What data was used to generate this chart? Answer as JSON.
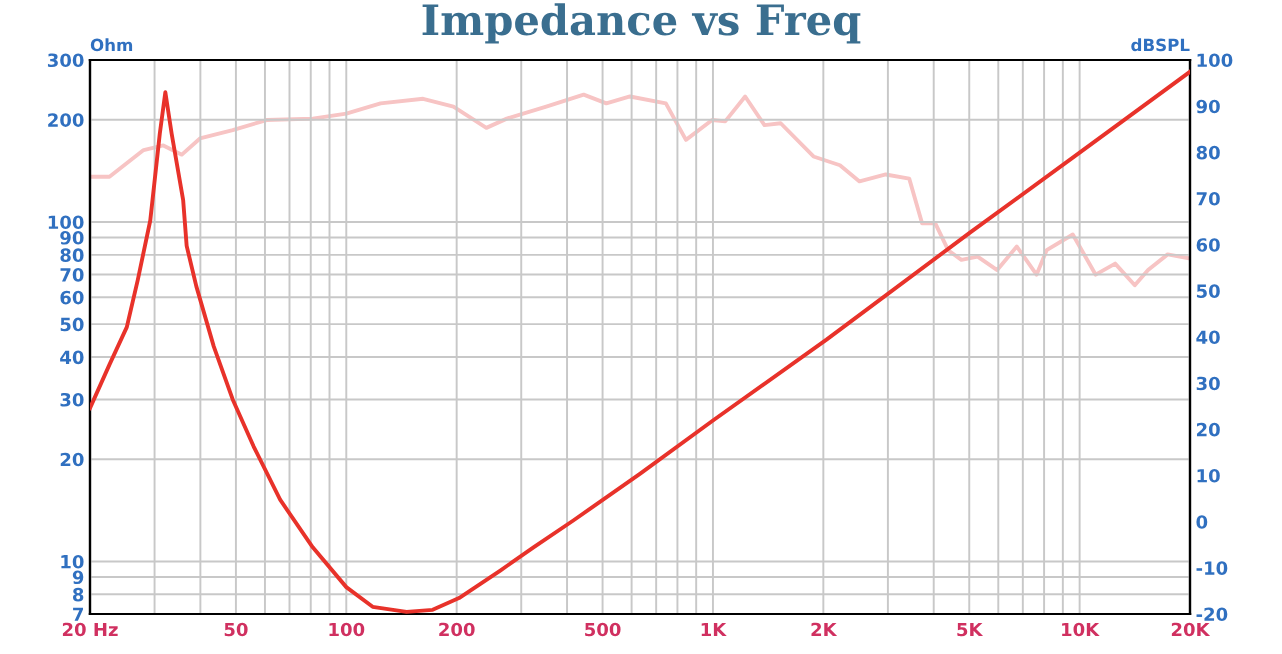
{
  "chart_data": {
    "type": "line",
    "title": "Impedance vs Freq",
    "ylabel": "Ohm",
    "y2label": "dBSPL",
    "log": "xy",
    "grid": true,
    "xlim": [
      20,
      20000
    ],
    "ylim": [
      7,
      300
    ],
    "y2lim": [
      -20,
      100
    ],
    "xticks": [
      {
        "value": 20,
        "label": "20 Hz"
      },
      {
        "value": 30,
        "label": null
      },
      {
        "value": 40,
        "label": null
      },
      50,
      {
        "value": 60,
        "label": null
      },
      {
        "value": 70,
        "label": null
      },
      {
        "value": 80,
        "label": null
      },
      {
        "value": 90,
        "label": null
      },
      100,
      200,
      {
        "value": 300,
        "label": null
      },
      {
        "value": 400,
        "label": null
      },
      500,
      {
        "value": 600,
        "label": null
      },
      {
        "value": 700,
        "label": null
      },
      {
        "value": 800,
        "label": null
      },
      {
        "value": 900,
        "label": null
      },
      {
        "value": 1000,
        "label": "1K"
      },
      {
        "value": 2000,
        "label": "2K"
      },
      {
        "value": 3000,
        "label": null
      },
      {
        "value": 4000,
        "label": null
      },
      {
        "value": 5000,
        "label": "5K"
      },
      {
        "value": 6000,
        "label": null
      },
      {
        "value": 7000,
        "label": null
      },
      {
        "value": 8000,
        "label": null
      },
      {
        "value": 9000,
        "label": null
      },
      {
        "value": 10000,
        "label": "10K"
      },
      {
        "value": 20000,
        "label": "20K"
      }
    ],
    "yticks": [
      7,
      8,
      9,
      10,
      20,
      30,
      40,
      50,
      60,
      70,
      80,
      90,
      100,
      200,
      300
    ],
    "y2ticks": [
      -20,
      -10,
      0,
      10,
      20,
      30,
      40,
      50,
      60,
      70,
      80,
      90,
      100
    ],
    "series": [
      {
        "color": "#f7c4c4",
        "axis": "y2",
        "x": [
          20,
          22.6,
          28,
          31.7,
          35.6,
          39.9,
          49,
          60.6,
          81,
          100,
          124,
          162,
          196,
          241,
          274,
          351,
          444,
          512,
          594,
          744,
          844,
          995,
          1080,
          1224,
          1382,
          1530,
          1880,
          2220,
          2510,
          2960,
          3430,
          3720,
          4040,
          4380,
          4760,
          5270,
          5960,
          6740,
          7630,
          8130,
          9580,
          11060,
          12500,
          14140,
          15370,
          17380,
          20000
        ],
        "values": [
          74.7,
          74.7,
          80.5,
          81.5,
          79.5,
          83,
          84.8,
          87,
          87.3,
          88.4,
          90.6,
          91.6,
          89.9,
          85.3,
          87.3,
          89.9,
          92.5,
          90.6,
          92.1,
          90.6,
          82.7,
          87,
          86.7,
          92.1,
          85.9,
          86.3,
          79.1,
          77.2,
          73.7,
          75.2,
          74.3,
          64.6,
          64.6,
          58.8,
          56.7,
          57.4,
          54.5,
          59.6,
          53.5,
          58.8,
          62.2,
          53.5,
          55.9,
          51.2,
          54.5,
          57.9,
          57
        ]
      },
      {
        "color": "#e8322a",
        "x": [
          20,
          22.6,
          25.2,
          27,
          29.2,
          31,
          32.1,
          33.4,
          35.9,
          36.7,
          39,
          43.5,
          49,
          55.9,
          66,
          81,
          100,
          118,
          146,
          172,
          203,
          263,
          324,
          416,
          632,
          1000,
          2040,
          5000,
          10000,
          20000
        ],
        "values": [
          28.3,
          38,
          49,
          67.5,
          101,
          182,
          241,
          182,
          116,
          85,
          64.6,
          43,
          30,
          21.8,
          15.2,
          11,
          8.4,
          7.35,
          7.1,
          7.2,
          7.8,
          9.4,
          11,
          13.2,
          18.1,
          26,
          45,
          92.7,
          160,
          277
        ]
      }
    ]
  }
}
